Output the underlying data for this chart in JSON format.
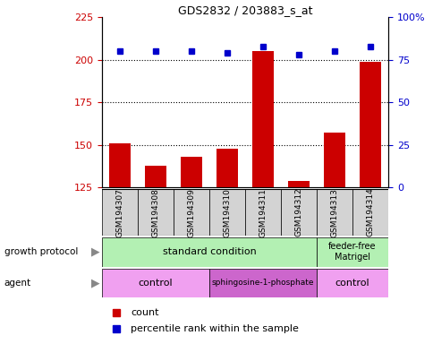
{
  "title": "GDS2832 / 203883_s_at",
  "samples": [
    "GSM194307",
    "GSM194308",
    "GSM194309",
    "GSM194310",
    "GSM194311",
    "GSM194312",
    "GSM194313",
    "GSM194314"
  ],
  "counts": [
    151,
    138,
    143,
    148,
    205,
    129,
    157,
    199
  ],
  "percentile_ranks": [
    80,
    80,
    80,
    79,
    83,
    78,
    80,
    83
  ],
  "ylim_left": [
    125,
    225
  ],
  "ylim_right": [
    0,
    100
  ],
  "yticks_left": [
    125,
    150,
    175,
    200,
    225
  ],
  "yticks_right": [
    0,
    25,
    50,
    75,
    100
  ],
  "bar_color": "#cc0000",
  "dot_color": "#0000cc",
  "hline_color": "#000000",
  "growth_protocol_label": "growth protocol",
  "agent_label": "agent",
  "gp_std_label": "standard condition",
  "gp_ff_label": "feeder-free\nMatrigel",
  "agent_ctrl1_label": "control",
  "agent_sph_label": "sphingosine-1-phosphate",
  "agent_ctrl2_label": "control",
  "gp_color": "#b3f0b3",
  "agent_ctrl_color": "#f0a0f0",
  "agent_sph_color": "#cc66cc",
  "sample_bg_color": "#d3d3d3",
  "legend_count_label": "count",
  "legend_pct_label": "percentile rank within the sample",
  "left_tick_color": "#cc0000",
  "right_tick_color": "#0000cc",
  "title_color": "#000000"
}
